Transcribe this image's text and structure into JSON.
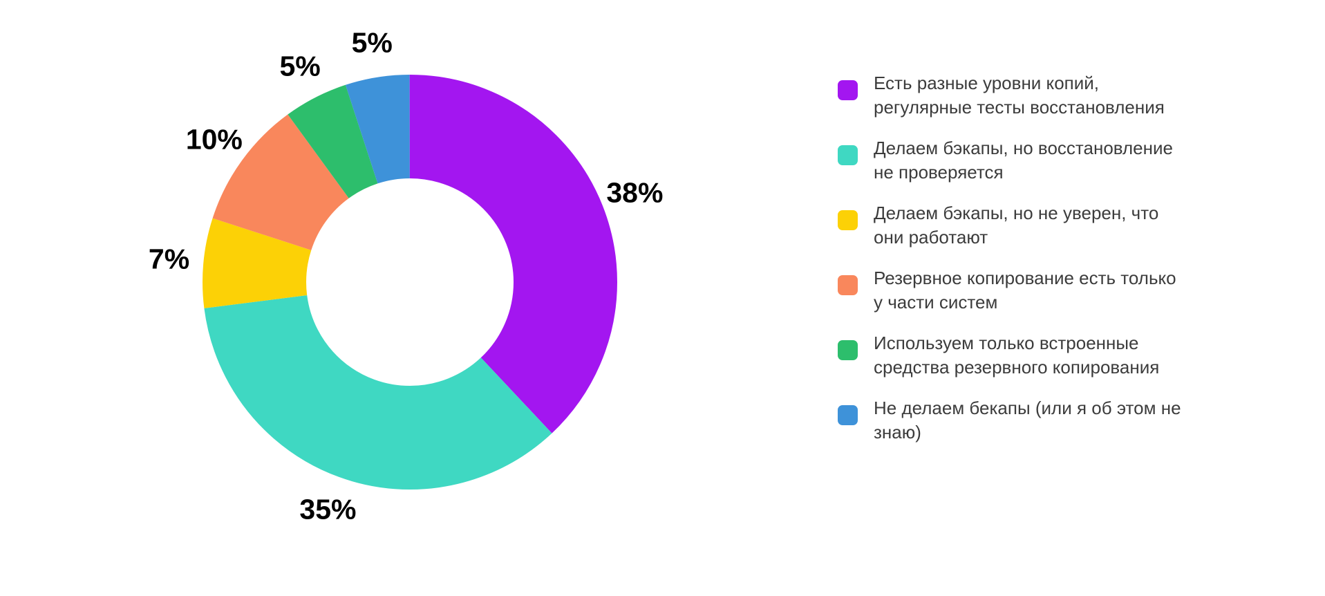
{
  "chart_data": {
    "type": "pie",
    "subtype": "donut",
    "title": "",
    "inner_radius_ratio": 0.5,
    "start_angle_deg": 0,
    "direction": "clockwise",
    "legend_position": "right",
    "background_color": "#FFFFFF",
    "data_label_color": "#000000",
    "legend_text_color": "#3C3C3C",
    "segments": [
      {
        "label": "Есть разные уровни копий, регулярные тесты восстановления",
        "value": 38,
        "data_label": "38%",
        "color": "#A316F0"
      },
      {
        "label": "Делаем бэкапы, но восстановление не проверяется",
        "value": 35,
        "data_label": "35%",
        "color": "#3FD8C2"
      },
      {
        "label": "Делаем бэкапы, но не уверен, что они работают",
        "value": 7,
        "data_label": "7%",
        "color": "#FCD106"
      },
      {
        "label": "Резервное копирование есть только у части систем",
        "value": 10,
        "data_label": "10%",
        "color": "#F9875C"
      },
      {
        "label": "Используем только встроенные средства резервного копирования",
        "value": 5,
        "data_label": "5%",
        "color": "#2DBE6C"
      },
      {
        "label": "Не делаем бекапы (или я об этом не знаю)",
        "value": 5,
        "data_label": "5%",
        "color": "#3E92D9"
      }
    ],
    "data_labels": [
      "38%",
      "35%",
      "7%",
      "10%",
      "5%",
      "5%"
    ]
  },
  "legend": {
    "items": [
      {
        "lines": [
          "Есть разные уровни копий,",
          "регулярные тесты восстановления"
        ]
      },
      {
        "lines": [
          "Делаем бэкапы, но восстановление",
          "не проверяется"
        ]
      },
      {
        "lines": [
          "Делаем бэкапы, но не уверен, что",
          "они работают"
        ]
      },
      {
        "lines": [
          "Резервное копирование есть только",
          "у части систем"
        ]
      },
      {
        "lines": [
          "Используем только встроенные",
          "средства резервного копирования"
        ]
      },
      {
        "lines": [
          "Не делаем бекапы (или я об этом не",
          "знаю)"
        ]
      }
    ]
  }
}
